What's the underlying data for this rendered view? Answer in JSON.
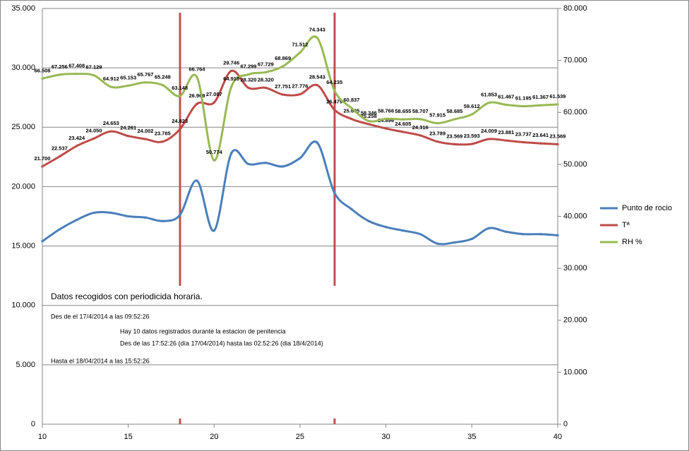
{
  "chart_data": {
    "type": "line",
    "x": [
      10,
      11,
      12,
      13,
      14,
      15,
      16,
      17,
      18,
      19,
      20,
      21,
      22,
      23,
      24,
      25,
      26,
      27,
      28,
      29,
      30,
      31,
      32,
      33,
      34,
      35,
      36,
      37,
      38,
      39,
      40
    ],
    "xlim": [
      10,
      40
    ],
    "xticks": [
      10,
      15,
      20,
      25,
      30,
      35,
      40
    ],
    "ylim": [
      0,
      35
    ],
    "yticks": [
      0,
      {
        "value": 5,
        "label": "5.000"
      },
      {
        "value": 10,
        "label": "10.000"
      },
      {
        "value": 15,
        "label": "15.000"
      },
      {
        "value": 20,
        "label": "20.000"
      },
      {
        "value": 25,
        "label": "25.000"
      },
      {
        "value": 30,
        "label": "30.000"
      },
      {
        "value": 35,
        "label": "35.000"
      }
    ],
    "y2lim": [
      0,
      80
    ],
    "y2ticks": [
      0,
      {
        "value": 10,
        "label": "10.000"
      },
      {
        "value": 20,
        "label": "20.000"
      },
      {
        "value": 30,
        "label": "30.000"
      },
      {
        "value": 40,
        "label": "40.000"
      },
      {
        "value": 50,
        "label": "50.000"
      },
      {
        "value": 60,
        "label": "60.000"
      },
      {
        "value": 70,
        "label": "70.000"
      },
      {
        "value": 80,
        "label": "80.000"
      }
    ],
    "grid": true,
    "series": [
      {
        "name": "Punto de rocio",
        "color": "#4a7ebb",
        "values": [
          15.4,
          16.4,
          17.2,
          17.8,
          17.8,
          17.5,
          17.4,
          17.1,
          17.6,
          20.5,
          16.3,
          22.8,
          21.9,
          22.0,
          21.7,
          22.4,
          23.7,
          19.5,
          18.1,
          17.1,
          16.6,
          16.3,
          16.0,
          15.2,
          15.3,
          15.6,
          16.5,
          16.2,
          16.0,
          16.0,
          15.9
        ]
      },
      {
        "name": "Tª",
        "color": "#be4b48",
        "label_color": "#a00000",
        "values": [
          21.7,
          22.537,
          23.424,
          24.05,
          24.653,
          24.261,
          24.002,
          23.785,
          24.823,
          26.969,
          27.087,
          29.746,
          28.32,
          28.32,
          27.751,
          27.776,
          28.543,
          26.479,
          25.695,
          25.258,
          24.896,
          24.605,
          24.316,
          23.789,
          23.569,
          23.593,
          24.009,
          23.881,
          23.737,
          23.641,
          23.569
        ],
        "value_labels": [
          "21.700",
          "22.537",
          "23.424",
          "24.050",
          "24.653",
          "24.261",
          "24.002",
          "23.785",
          "24.823",
          "26.969",
          "27.087",
          "29.746",
          "28.320",
          "28.320",
          "27.751",
          "27.776",
          "28.543",
          "26.479",
          "25.695",
          "25.258",
          "24.896",
          "24.605",
          "24.316",
          "23.789",
          "23.569",
          "23.593",
          "24.009",
          "23.881",
          "23.737",
          "23.641",
          "23.569"
        ]
      },
      {
        "name": "RH %",
        "color": "#98b954",
        "label_color": "#1f3a60",
        "axis": "y2",
        "values": [
          66.508,
          67.256,
          67.408,
          67.129,
          64.912,
          65.153,
          65.767,
          65.248,
          63.148,
          66.764,
          50.774,
          64.918,
          67.299,
          67.729,
          68.869,
          71.512,
          74.343,
          64.235,
          60.837,
          58.346,
          58.766,
          58.655,
          58.707,
          57.915,
          58.685,
          59.612,
          61.853,
          61.467,
          61.195,
          61.367,
          61.539
        ],
        "value_labels": [
          "66.508",
          "67.256",
          "67.408",
          "67.129",
          "64.912",
          "65.153",
          "65.767",
          "65.248",
          "63.148",
          "66.764",
          "50.774",
          "64.918",
          "67.299",
          "67.729",
          "68.869",
          "71.512",
          "74.343",
          "64.235",
          "60.837",
          "58.346",
          "58.766",
          "58.655",
          "58.707",
          "57.915",
          "58.685",
          "59.612",
          "61.853",
          "61.467",
          "61.195",
          "61.367",
          "61.539"
        ]
      }
    ],
    "annotations": [
      "Datos recogidos con periodicida horaria.",
      "Des de el 17/4/2014 a las 09:52:26",
      "Hay 10 datos registrados durante la estacion de penitencia",
      "Des de las 17:52:26 (día 17/04/2014) hasta las 02:52:26 (dia 18/4/2014)",
      "Hasta el 18/04/2014 a las 15:52:26"
    ]
  }
}
